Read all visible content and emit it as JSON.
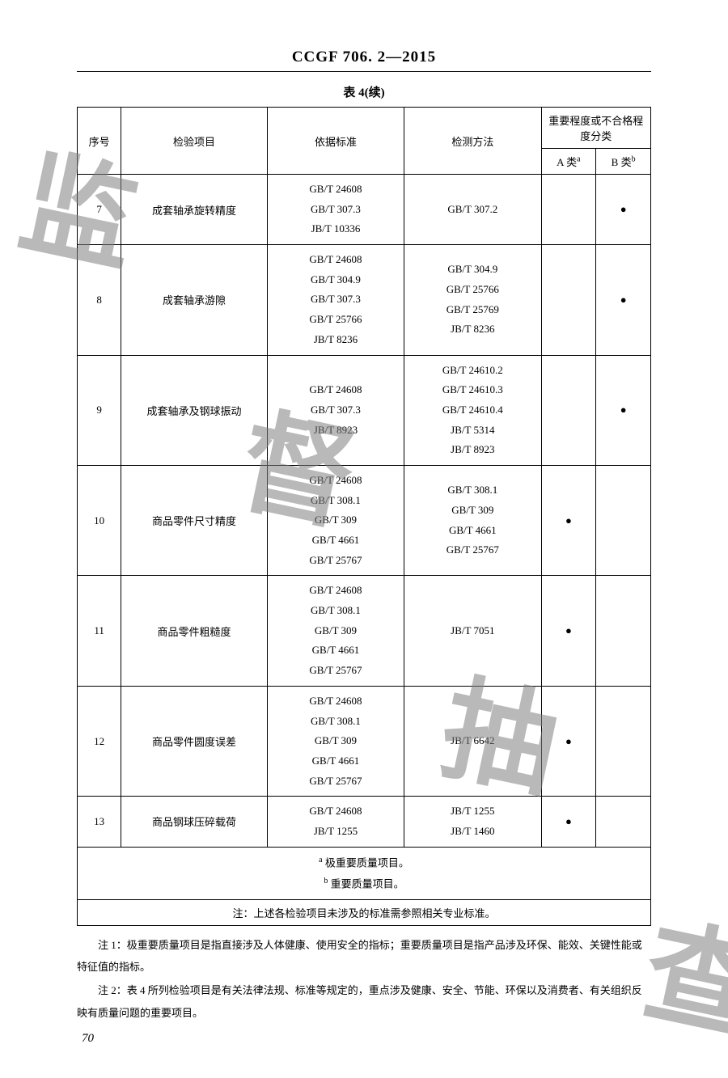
{
  "doc_id": "CCGF 706. 2—2015",
  "table_caption": "表 4(续)",
  "columns": {
    "seq": "序号",
    "item": "检验项目",
    "standard": "依据标准",
    "method": "检测方法",
    "importance_header": "重要程度或不合格程度分类",
    "class_a": "A 类",
    "class_a_sup": "a",
    "class_b": "B 类",
    "class_b_sup": "b"
  },
  "rows": [
    {
      "seq": "7",
      "item": "成套轴承旋转精度",
      "standards": [
        "GB/T 24608",
        "GB/T 307.3",
        "JB/T 10336"
      ],
      "methods": [
        "GB/T 307.2"
      ],
      "a": "",
      "b": "●"
    },
    {
      "seq": "8",
      "item": "成套轴承游隙",
      "standards": [
        "GB/T 24608",
        "GB/T 304.9",
        "GB/T 307.3",
        "GB/T 25766",
        "JB/T 8236"
      ],
      "methods": [
        "GB/T 304.9",
        "GB/T 25766",
        "GB/T 25769",
        "JB/T 8236"
      ],
      "a": "",
      "b": "●"
    },
    {
      "seq": "9",
      "item": "成套轴承及钢球振动",
      "standards": [
        "GB/T 24608",
        "GB/T 307.3",
        "JB/T 8923"
      ],
      "methods": [
        "GB/T 24610.2",
        "GB/T 24610.3",
        "GB/T 24610.4",
        "JB/T 5314",
        "JB/T 8923"
      ],
      "a": "",
      "b": "●"
    },
    {
      "seq": "10",
      "item": "商品零件尺寸精度",
      "standards": [
        "GB/T 24608",
        "GB/T 308.1",
        "GB/T 309",
        "GB/T 4661",
        "GB/T 25767"
      ],
      "methods": [
        "GB/T 308.1",
        "GB/T 309",
        "GB/T 4661",
        "GB/T 25767"
      ],
      "a": "●",
      "b": ""
    },
    {
      "seq": "11",
      "item": "商品零件粗糙度",
      "standards": [
        "GB/T 24608",
        "GB/T 308.1",
        "GB/T 309",
        "GB/T 4661",
        "GB/T 25767"
      ],
      "methods": [
        "JB/T 7051"
      ],
      "a": "●",
      "b": ""
    },
    {
      "seq": "12",
      "item": "商品零件圆度误差",
      "standards": [
        "GB/T 24608",
        "GB/T 308.1",
        "GB/T 309",
        "GB/T 4661",
        "GB/T 25767"
      ],
      "methods": [
        "JB/T 6642"
      ],
      "a": "●",
      "b": ""
    },
    {
      "seq": "13",
      "item": "商品钢球压碎载荷",
      "standards": [
        "GB/T 24608",
        "JB/T 1255"
      ],
      "methods": [
        "JB/T 1255",
        "JB/T 1460"
      ],
      "a": "●",
      "b": ""
    }
  ],
  "footnotes": {
    "a": "极重要质量项目。",
    "b": "重要质量项目。"
  },
  "in_table_note": "注：上述各检验项目未涉及的标准需参照相关专业标准。",
  "outer_notes": [
    "注 1：极重要质量项目是指直接涉及人体健康、使用安全的指标；重要质量项目是指产品涉及环保、能效、关键性能或特征值的指标。",
    "注 2：表 4 所列检验项目是有关法律法规、标准等规定的，重点涉及健康、安全、节能、环保以及消费者、有关组织反映有质量问题的重要项目。"
  ],
  "page_number": "70",
  "watermark_chars": [
    "监",
    "督",
    "抽",
    "查"
  ]
}
